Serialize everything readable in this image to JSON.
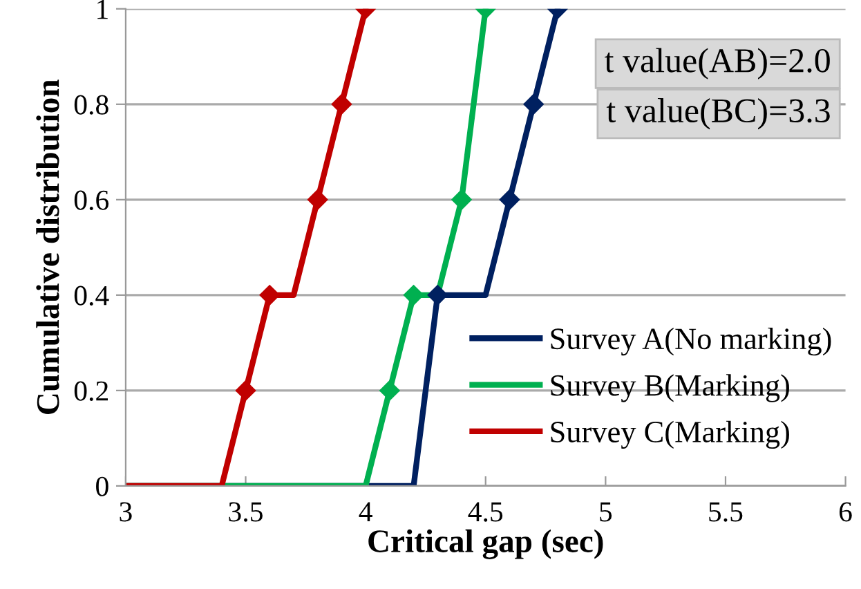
{
  "chart_data": {
    "type": "line",
    "xlabel": "Critical gap (sec)",
    "ylabel": "Cumulative distribution",
    "xlim": [
      3,
      6
    ],
    "xticks": [
      3,
      3.5,
      4,
      4.5,
      5,
      5.5,
      6
    ],
    "ylim": [
      0,
      1
    ],
    "yticks": [
      0,
      0.2,
      0.4,
      0.6,
      0.8,
      1
    ],
    "grid": "y",
    "legend": "right",
    "line_style": "solid",
    "annotations": [
      "t value(AB)=2.0",
      "t value(BC)=3.3"
    ],
    "series": [
      {
        "name": "Survey A(No marking)",
        "color": "#002060",
        "marker": "none",
        "x": [
          3,
          4.2,
          4.3,
          4.5,
          4.6,
          4.7,
          4.8
        ],
        "values": [
          0,
          0,
          0.4,
          0.4,
          0.6,
          0.8,
          1
        ]
      },
      {
        "name": "Survey B(Marking)",
        "color": "#00b050",
        "marker": "none",
        "x": [
          3,
          4.0,
          4.1,
          4.2,
          4.3,
          4.4,
          4.5
        ],
        "values": [
          0,
          0,
          0.2,
          0.4,
          0.4,
          0.6,
          1
        ]
      },
      {
        "name": "Survey C(Marking)",
        "color": "#c00000",
        "marker": "none",
        "x": [
          3,
          3.4,
          3.5,
          3.6,
          3.7,
          3.8,
          3.9,
          4.0
        ],
        "values": [
          0,
          0,
          0.2,
          0.4,
          0.4,
          0.6,
          0.8,
          1
        ]
      },
      {
        "type": "scatter",
        "color": "#002060",
        "marker": "diamond",
        "x": [
          4.3,
          4.6,
          4.7,
          4.8
        ],
        "values": [
          0.4,
          0.6,
          0.8,
          1
        ]
      },
      {
        "type": "scatter",
        "color": "#00b050",
        "marker": "diamond",
        "x": [
          4.1,
          4.2,
          4.4,
          4.5
        ],
        "values": [
          0.2,
          0.4,
          0.6,
          1
        ]
      },
      {
        "type": "scatter",
        "color": "#c00000",
        "marker": "diamond",
        "x": [
          3.5,
          3.6,
          3.8,
          3.9,
          4.0
        ],
        "values": [
          0.2,
          0.4,
          0.6,
          0.8,
          1
        ]
      }
    ]
  }
}
